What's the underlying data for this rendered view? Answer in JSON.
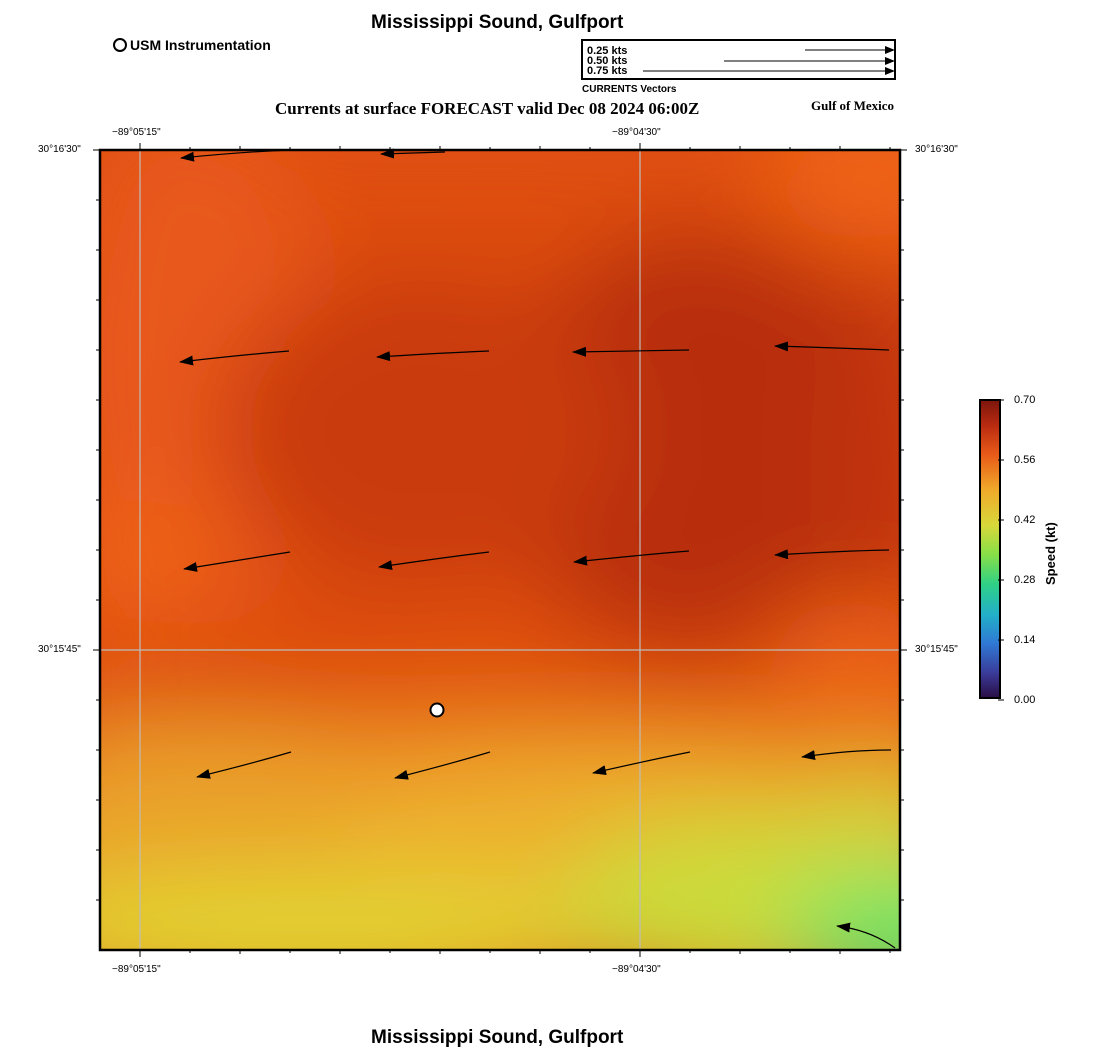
{
  "title": "Mississippi Sound, Gulfport",
  "subtitle": "Currents at surface FORECAST valid Dec 08 2024 06:00Z",
  "region_label": "Gulf of Mexico",
  "footer_title": "Mississippi Sound, Gulfport",
  "station_legend": {
    "label": "USM Instrumentation"
  },
  "vector_legend": {
    "rows": [
      "0.25 kts",
      "0.50 kts",
      "0.75 kts"
    ],
    "caption": "CURRENTS Vectors"
  },
  "colorbar": {
    "label": "Speed (kt)",
    "ticks": [
      "0.70",
      "0.56",
      "0.42",
      "0.28",
      "0.14",
      "0.00"
    ]
  },
  "axes": {
    "lon_ticks": [
      "−89°05'15\"",
      "−89°04'30\""
    ],
    "lat_ticks": [
      "30°16'30\"",
      "30°15'45\""
    ]
  },
  "colors": {
    "field_dark": "#b82e0e",
    "field_orange": "#ef5f16",
    "field_yellow": "#e3d230",
    "field_green": "#5fe86a"
  },
  "map_data": {
    "vector_rows": [
      {
        "lat_row": 1,
        "vectors": [
          {
            "dir": "W",
            "speed": 0.61
          },
          {
            "dir": "W",
            "speed": 0.62
          }
        ]
      },
      {
        "lat_row": 2,
        "vectors": [
          {
            "dir": "W",
            "speed": 0.64
          },
          {
            "dir": "W",
            "speed": 0.67
          },
          {
            "dir": "W",
            "speed": 0.68
          },
          {
            "dir": "W",
            "speed": 0.68
          }
        ]
      },
      {
        "lat_row": 3,
        "vectors": [
          {
            "dir": "WSW",
            "speed": 0.63
          },
          {
            "dir": "WSW",
            "speed": 0.65
          },
          {
            "dir": "W",
            "speed": 0.68
          },
          {
            "dir": "W",
            "speed": 0.68
          }
        ]
      },
      {
        "lat_row": 4,
        "vectors": [
          {
            "dir": "WSW",
            "speed": 0.57
          },
          {
            "dir": "WSW",
            "speed": 0.56
          },
          {
            "dir": "WSW",
            "speed": 0.56
          },
          {
            "dir": "W",
            "speed": 0.5
          }
        ]
      }
    ]
  }
}
